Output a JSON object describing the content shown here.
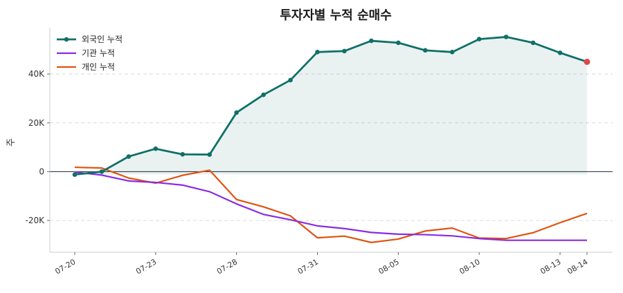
{
  "chart_data": {
    "type": "line",
    "title": "투자자별 누적 순매수",
    "xlabel": "",
    "ylabel": "주",
    "dates": [
      "07-20",
      "07-21",
      "07-22",
      "07-23",
      "07-24",
      "07-25",
      "07-28",
      "07-29",
      "07-30",
      "07-31",
      "08-01",
      "08-04",
      "08-05",
      "08-06",
      "08-07",
      "08-10",
      "08-11",
      "08-12",
      "08-13",
      "08-14"
    ],
    "x_tick_labels": [
      "07-20",
      "07-23",
      "07-28",
      "07-31",
      "08-05",
      "08-10",
      "08-13",
      "08-14"
    ],
    "y_ticks": [
      -20000,
      0,
      20000,
      40000
    ],
    "y_tick_labels": [
      "-20K",
      "0",
      "20K",
      "40K"
    ],
    "ylim": [
      -33000,
      59000
    ],
    "grid": true,
    "legend_position": "top-left",
    "series": [
      {
        "name": "외국인 누적",
        "color": "#0f7068",
        "markers": true,
        "fill": true,
        "values": [
          -1200,
          0,
          6200,
          9400,
          7100,
          7000,
          24200,
          31500,
          37500,
          49000,
          49400,
          53600,
          52800,
          49700,
          49000,
          54300,
          55200,
          52800,
          48700,
          45000
        ]
      },
      {
        "name": "기관 누적",
        "color": "#8a2be2",
        "markers": false,
        "fill": false,
        "values": [
          -200,
          -1400,
          -3800,
          -4400,
          -5500,
          -8200,
          -13200,
          -17500,
          -19700,
          -22200,
          -23300,
          -24900,
          -25600,
          -25800,
          -26300,
          -27400,
          -28100,
          -28100,
          -28100,
          -28100
        ]
      },
      {
        "name": "개인 누적",
        "color": "#e0520e",
        "markers": false,
        "fill": false,
        "values": [
          1800,
          1500,
          -2600,
          -4700,
          -1500,
          600,
          -11400,
          -14400,
          -18100,
          -27100,
          -26400,
          -29000,
          -27600,
          -24300,
          -23100,
          -27200,
          -27400,
          -25000,
          -20900,
          -17100
        ]
      }
    ],
    "highlight_last_point": {
      "series": "외국인 누적",
      "color": "#e04848"
    },
    "zero_line_color": "#2f3a4a"
  }
}
